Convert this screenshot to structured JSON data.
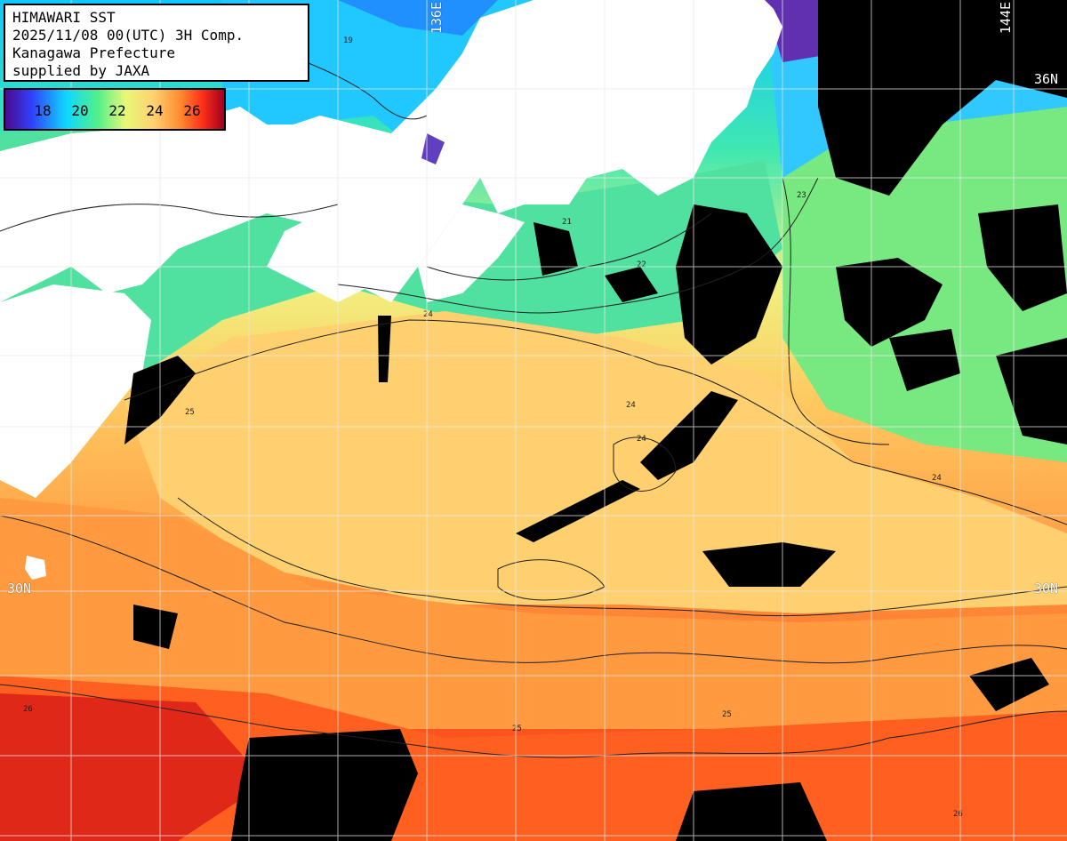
{
  "header": {
    "line1": "HIMAWARI SST",
    "line2": "2025/11/08 00(UTC) 3H Comp.",
    "line3": "Kanagawa Prefecture",
    "line4": "supplied by JAXA"
  },
  "legend": {
    "ticks": [
      "18",
      "20",
      "22",
      "24",
      "26"
    ],
    "colors": [
      "#4b0a8c",
      "#2030ff",
      "#10d8ff",
      "#50f08a",
      "#d8f070",
      "#ffe080",
      "#ffa040",
      "#ff5020",
      "#d01020",
      "#a00020"
    ]
  },
  "grid_labels": {
    "lon_136": "136E",
    "lon_144": "144E",
    "lat_36": "36N",
    "lat_30_left": "30N",
    "lat_30_right": "30N"
  },
  "contour_labels": [
    "19",
    "21",
    "22",
    "23",
    "24",
    "25",
    "26"
  ],
  "map_colors": {
    "land": "#ffffff",
    "cloud": "#000000",
    "grid": "#e8e8e8",
    "contour": "#202020"
  }
}
